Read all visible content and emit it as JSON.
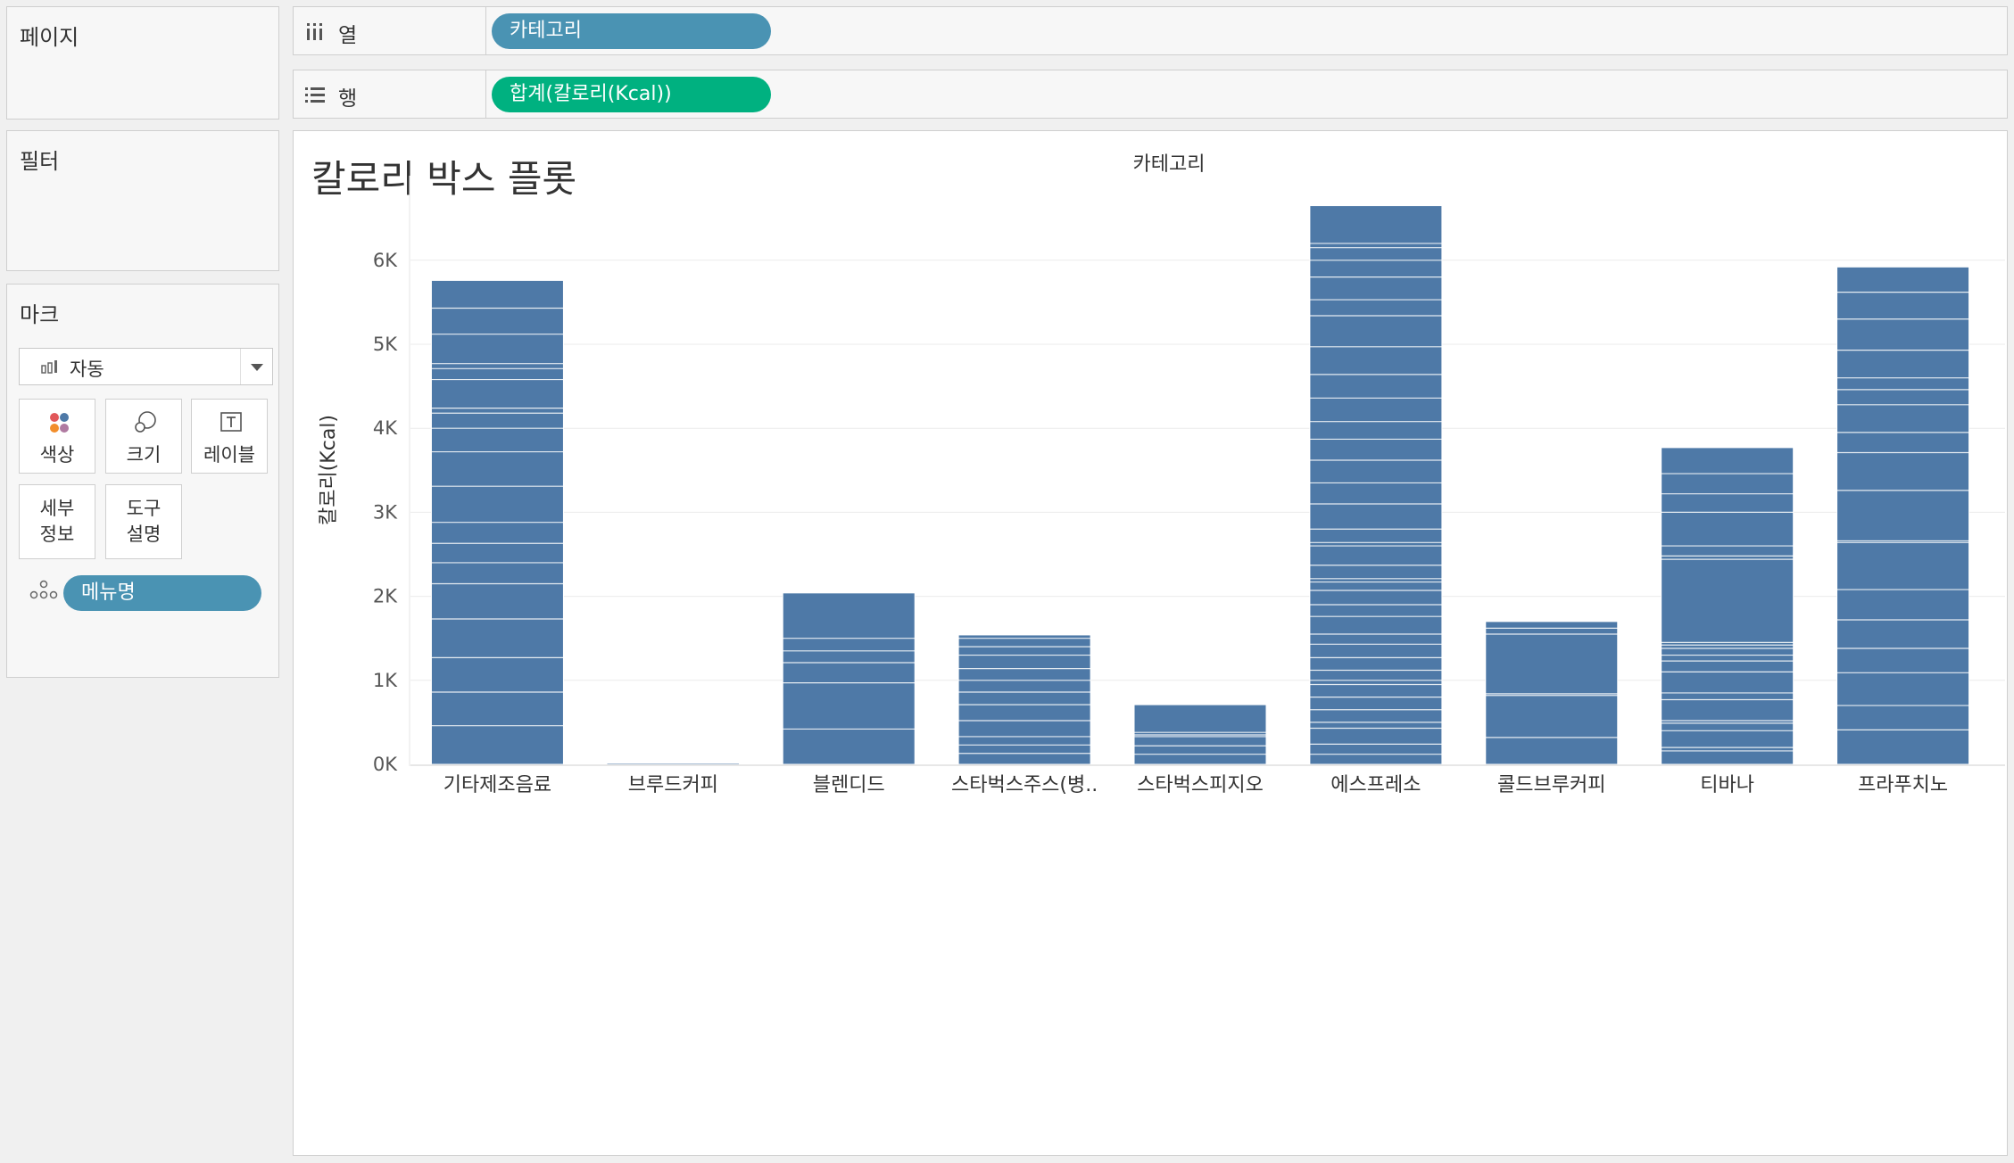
{
  "cards": {
    "pages_title": "페이지",
    "filters_title": "필터",
    "marks_title": "마크",
    "mark_type": "자동",
    "mark_buttons": {
      "color": "색상",
      "size": "크기",
      "label": "레이블",
      "detail_line1": "세부",
      "detail_line2": "정보",
      "tooltip_line1": "도구",
      "tooltip_line2": "설명"
    },
    "detail_pill": "메뉴명"
  },
  "shelves": {
    "columns_label": "열",
    "columns_pill": "카테고리",
    "rows_label": "행",
    "rows_pill": "합계(칼로리(Kcal))"
  },
  "colors": {
    "columns_pill": "#4a93b3",
    "rows_pill": "#00b180",
    "detail_pill": "#4a93b3",
    "bar": "#4e79a7",
    "segment_line": "#ffffff"
  },
  "view": {
    "title": "칼로리 박스 플롯"
  },
  "chart_data": {
    "type": "bar",
    "stacked": true,
    "header": "카테고리",
    "ylabel": "칼로리(Kcal)",
    "ylim": [
      0,
      6900
    ],
    "yticks": [
      0,
      1000,
      2000,
      3000,
      4000,
      5000,
      6000
    ],
    "ytick_labels": [
      "0K",
      "1K",
      "2K",
      "3K",
      "4K",
      "5K",
      "6K"
    ],
    "grid": true,
    "categories": [
      "기타제조음료",
      "브루드커피",
      "블렌디드",
      "스타벅스주스(병..",
      "스타벅스피지오",
      "에스프레소",
      "콜드브루커피",
      "티바나",
      "프라푸치노"
    ],
    "values": [
      5760,
      10,
      2040,
      1540,
      710,
      6650,
      1700,
      3770,
      5920
    ],
    "segment_boundaries": [
      [
        460,
        860,
        1270,
        1730,
        2150,
        2400,
        2630,
        2880,
        3310,
        3720,
        4000,
        4180,
        4240,
        4580,
        4710,
        4770,
        5120,
        5430
      ],
      [],
      [
        420,
        970,
        1210,
        1350,
        1500
      ],
      [
        130,
        230,
        330,
        520,
        710,
        860,
        1000,
        1140,
        1300,
        1400,
        1500
      ],
      [
        120,
        220,
        330,
        350,
        380
      ],
      [
        120,
        240,
        430,
        500,
        650,
        800,
        950,
        1000,
        1120,
        1270,
        1430,
        1550,
        1760,
        1900,
        2070,
        2170,
        2210,
        2370,
        2600,
        2640,
        2800,
        3100,
        3350,
        3620,
        3870,
        4080,
        4360,
        4640,
        4970,
        5340,
        5530,
        5800,
        6000,
        6150,
        6200
      ],
      [
        320,
        820,
        840,
        1550,
        1620
      ],
      [
        160,
        200,
        400,
        490,
        520,
        770,
        850,
        1100,
        1230,
        1300,
        1380,
        1420,
        1450,
        2440,
        2480,
        2600,
        3000,
        3220,
        3460
      ],
      [
        410,
        700,
        1090,
        1380,
        1720,
        2080,
        2640,
        2660,
        3260,
        3710,
        3950,
        4280,
        4460,
        4600,
        4930,
        5300,
        5620
      ]
    ]
  }
}
